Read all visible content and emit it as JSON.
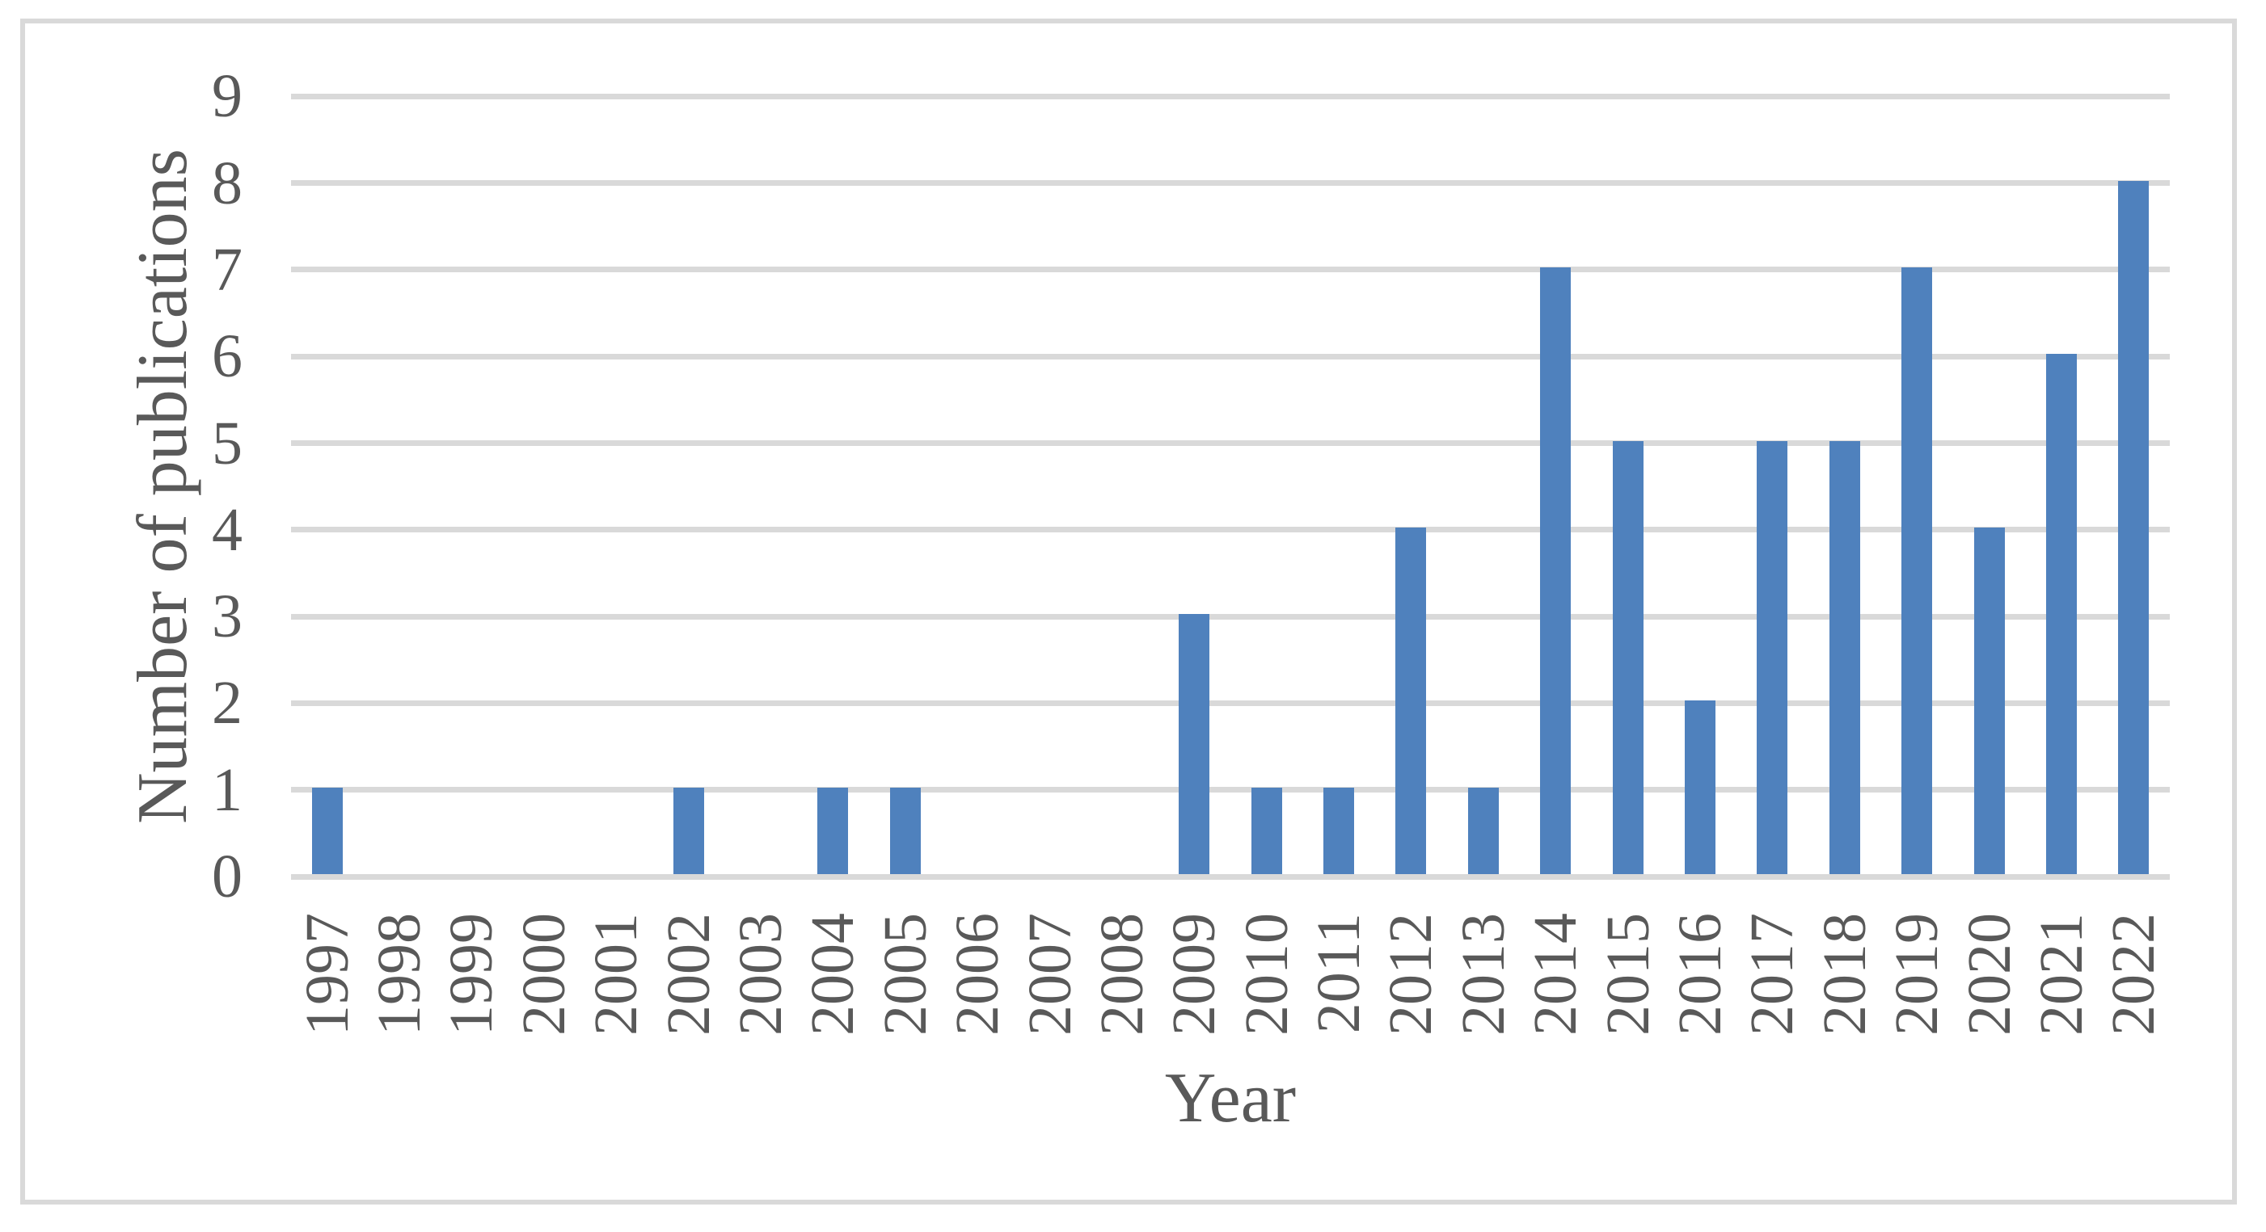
{
  "chart_data": {
    "type": "bar",
    "title": "",
    "xlabel": "Year",
    "ylabel": "Number of publications",
    "categories": [
      "1997",
      "1998",
      "1999",
      "2000",
      "2001",
      "2002",
      "2003",
      "2004",
      "2005",
      "2006",
      "2007",
      "2008",
      "2009",
      "2010",
      "2011",
      "2012",
      "2013",
      "2014",
      "2015",
      "2016",
      "2017",
      "2018",
      "2019",
      "2020",
      "2021",
      "2022"
    ],
    "values": [
      1,
      0,
      0,
      0,
      0,
      1,
      0,
      1,
      1,
      0,
      0,
      0,
      3,
      1,
      1,
      4,
      1,
      7,
      5,
      2,
      5,
      5,
      7,
      4,
      6,
      8
    ],
    "y_ticks": [
      "0",
      "1",
      "2",
      "3",
      "4",
      "5",
      "6",
      "7",
      "8",
      "9"
    ],
    "ylim": [
      0,
      9
    ],
    "ytick_interval": 1,
    "grid": "horizontal",
    "legend": "none",
    "colors": {
      "bar": "#4F81BD",
      "gridline": "#D9D9D9",
      "axis_line": "#D9D9D9",
      "text": "#595959",
      "figure_border": "#D9D9D9",
      "background": "#FFFFFF"
    }
  }
}
